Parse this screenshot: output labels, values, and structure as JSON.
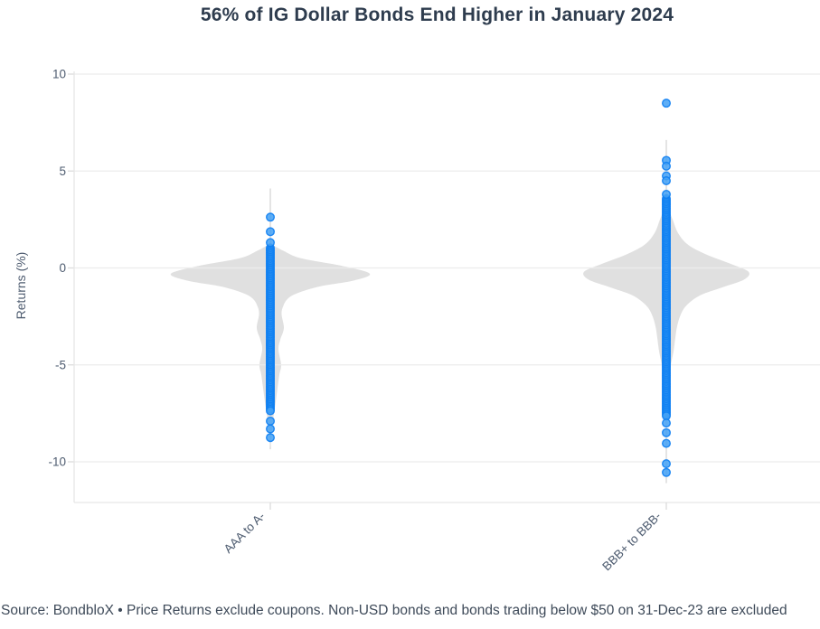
{
  "colors": {
    "title_text": "#2e3c4e",
    "axis_label_text": "#4e5c70",
    "source_text": "#3e4a59",
    "gridline": "#ececec",
    "axis_line": "#e6e6e6",
    "tick_mark": "#dcdcdc",
    "violin_fill": "#e0e0e0",
    "whisker_line": "#d2d2d2",
    "point_stroke": "#0d7ef2",
    "point_fill": "#42a0f5"
  },
  "chart_data": {
    "type": "violin",
    "title": "56% of IG Dollar Bonds End Higher in January 2024",
    "source_note": "Source: BondbloX • Price Returns exclude coupons. Non-USD bonds and bonds trading below $50 on 31-Dec-23 are excluded",
    "ylabel": "Returns (%)",
    "xlabel": "",
    "yticks": [
      10,
      5,
      0,
      -5,
      -10
    ],
    "ylim": [
      -12.2,
      10.2
    ],
    "grid": true,
    "legend": false,
    "categories": [
      "AAA to A-",
      "BBB+ to BBB-"
    ],
    "series": [
      {
        "category": "AAA to A-",
        "whisker_range": [
          -9.35,
          4.1
        ],
        "dense_points_range": {
          "from": 1.03,
          "to": -7.4,
          "step": 0.08
        },
        "outlier_points": [
          2.62,
          1.87,
          1.31,
          -7.9,
          -8.3,
          -8.75
        ],
        "violin_profile": [
          [
            1.25,
            0
          ],
          [
            0.9,
            14
          ],
          [
            0.5,
            34
          ],
          [
            0.1,
            80
          ],
          [
            -0.3,
            110
          ],
          [
            -0.65,
            92
          ],
          [
            -0.95,
            55
          ],
          [
            -1.3,
            30
          ],
          [
            -1.6,
            19
          ],
          [
            -2.0,
            14
          ],
          [
            -2.4,
            12.5
          ],
          [
            -3.1,
            15
          ],
          [
            -3.7,
            11
          ],
          [
            -4.2,
            9
          ],
          [
            -5.0,
            12
          ],
          [
            -5.5,
            10
          ],
          [
            -6.2,
            8
          ],
          [
            -6.9,
            6
          ],
          [
            -7.5,
            4
          ],
          [
            -8.3,
            2
          ],
          [
            -9.3,
            0
          ]
        ]
      },
      {
        "category": "BBB+ to BBB-",
        "whisker_range": [
          -11.1,
          6.6
        ],
        "dense_points_range": {
          "from": 3.57,
          "to": -7.7,
          "step": 0.08
        },
        "outlier_points": [
          8.5,
          5.55,
          5.25,
          4.75,
          4.5,
          3.8,
          -8.0,
          -8.5,
          -9.05,
          -10.1,
          -10.55
        ],
        "violin_profile": [
          [
            3.3,
            0
          ],
          [
            2.5,
            7
          ],
          [
            1.8,
            13
          ],
          [
            1.2,
            24
          ],
          [
            0.7,
            44
          ],
          [
            0.2,
            72
          ],
          [
            -0.2,
            91
          ],
          [
            -0.6,
            86
          ],
          [
            -1.0,
            62
          ],
          [
            -1.4,
            38
          ],
          [
            -1.9,
            23
          ],
          [
            -2.4,
            16
          ],
          [
            -3.0,
            12
          ],
          [
            -3.6,
            10
          ],
          [
            -4.3,
            8
          ],
          [
            -5.0,
            5
          ],
          [
            -5.7,
            3
          ],
          [
            -6.5,
            1.5
          ],
          [
            -7.5,
            0.7
          ],
          [
            -8.5,
            0
          ]
        ]
      }
    ]
  }
}
